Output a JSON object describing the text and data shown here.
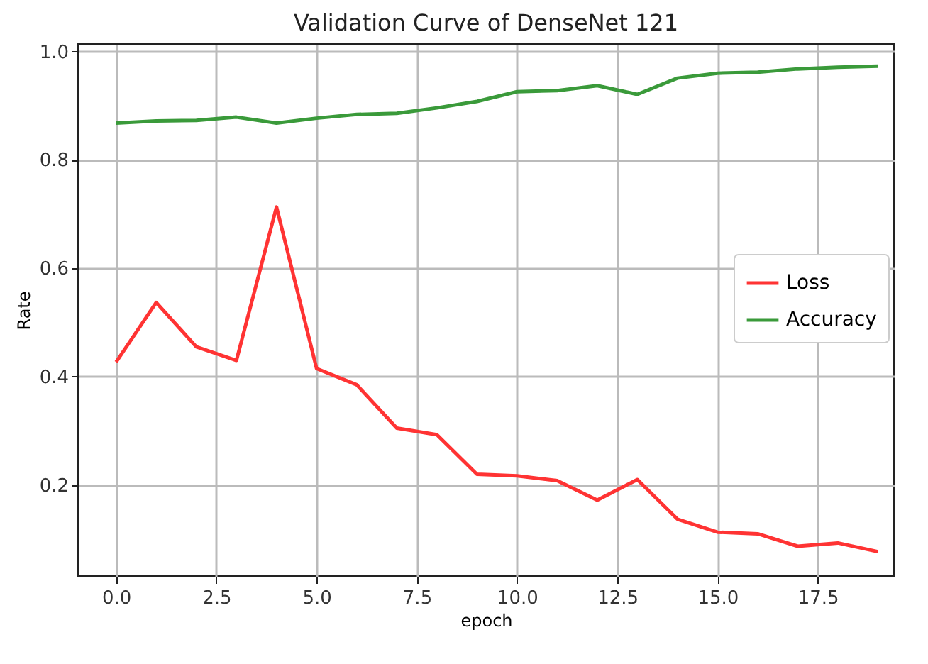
{
  "chart_data": {
    "type": "line",
    "title": "Validation Curve of DenseNet 121",
    "xlabel": "epoch",
    "ylabel": "Rate",
    "x": [
      0,
      1,
      2,
      3,
      4,
      5,
      6,
      7,
      8,
      9,
      10,
      11,
      12,
      13,
      14,
      15,
      16,
      17,
      18,
      19
    ],
    "series": [
      {
        "name": "Loss",
        "color": "#ff3333",
        "values": [
          0.427,
          0.537,
          0.455,
          0.43,
          0.713,
          0.415,
          0.385,
          0.305,
          0.293,
          0.22,
          0.217,
          0.208,
          0.172,
          0.21,
          0.137,
          0.113,
          0.11,
          0.087,
          0.093,
          0.077
        ]
      },
      {
        "name": "Accuracy",
        "color": "#3a9a3a",
        "values": [
          0.868,
          0.872,
          0.873,
          0.879,
          0.868,
          0.877,
          0.884,
          0.886,
          0.896,
          0.908,
          0.926,
          0.928,
          0.937,
          0.921,
          0.951,
          0.96,
          0.962,
          0.968,
          0.971,
          0.973
        ]
      }
    ],
    "xlim": [
      -0.95,
      19.4
    ],
    "xticks": [
      {
        "value": 0,
        "label": "0.0"
      },
      {
        "value": 2.5,
        "label": "2.5"
      },
      {
        "value": 5,
        "label": "5.0"
      },
      {
        "value": 7.5,
        "label": "7.5"
      },
      {
        "value": 10,
        "label": "10.0"
      },
      {
        "value": 12.5,
        "label": "12.5"
      },
      {
        "value": 15,
        "label": "15.0"
      },
      {
        "value": 17.5,
        "label": "17.5"
      }
    ],
    "ylim": [
      0.032,
      1.014
    ],
    "yticks": [
      {
        "value": 0.2,
        "label": "0.2"
      },
      {
        "value": 0.4,
        "label": "0.4"
      },
      {
        "value": 0.6,
        "label": "0.6"
      },
      {
        "value": 0.8,
        "label": "0.8"
      },
      {
        "value": 1,
        "label": "1.0"
      }
    ],
    "grid": true,
    "legend": "right",
    "line_style": "solid",
    "marker": "none"
  }
}
